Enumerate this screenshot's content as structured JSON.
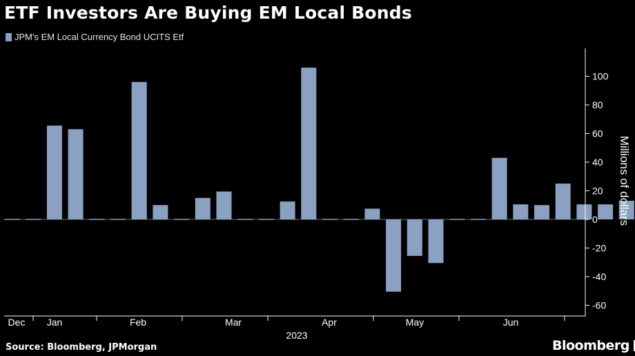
{
  "title": "ETF Investors Are Buying EM Local Bonds",
  "source": "Source: Bloomberg, JPMorgan",
  "brand": "Bloomberg",
  "colors": {
    "bar": "#8ba1c1",
    "grid": "#3a3a3a",
    "axis": "#ffffff",
    "text": "#ffffff"
  },
  "chart_data": {
    "type": "bar",
    "title": "ETF Investors Are Buying EM Local Bonds",
    "series": [
      {
        "name": "JPM's EM Local Currency Bond UCITS Etf",
        "values": [
          0,
          0,
          65.5,
          63,
          0,
          0,
          96,
          10,
          0,
          15,
          19.5,
          0,
          0,
          12.5,
          106,
          0,
          0,
          7.5,
          -50.5,
          -25.5,
          -30.5,
          0,
          0,
          43,
          10.5,
          10,
          25,
          10.5,
          10.5,
          13,
          0
        ]
      }
    ],
    "month_labels": [
      "Dec",
      "Jan",
      "Feb",
      "Mar",
      "Apr",
      "May",
      "Jun"
    ],
    "year_label": "2023",
    "ylabel": "Millions of dollars",
    "ylim": [
      -65,
      115
    ],
    "yticks": [
      -60,
      -40,
      -20,
      0,
      20,
      40,
      60,
      80,
      100
    ],
    "grid": false,
    "legend": "top-left"
  }
}
